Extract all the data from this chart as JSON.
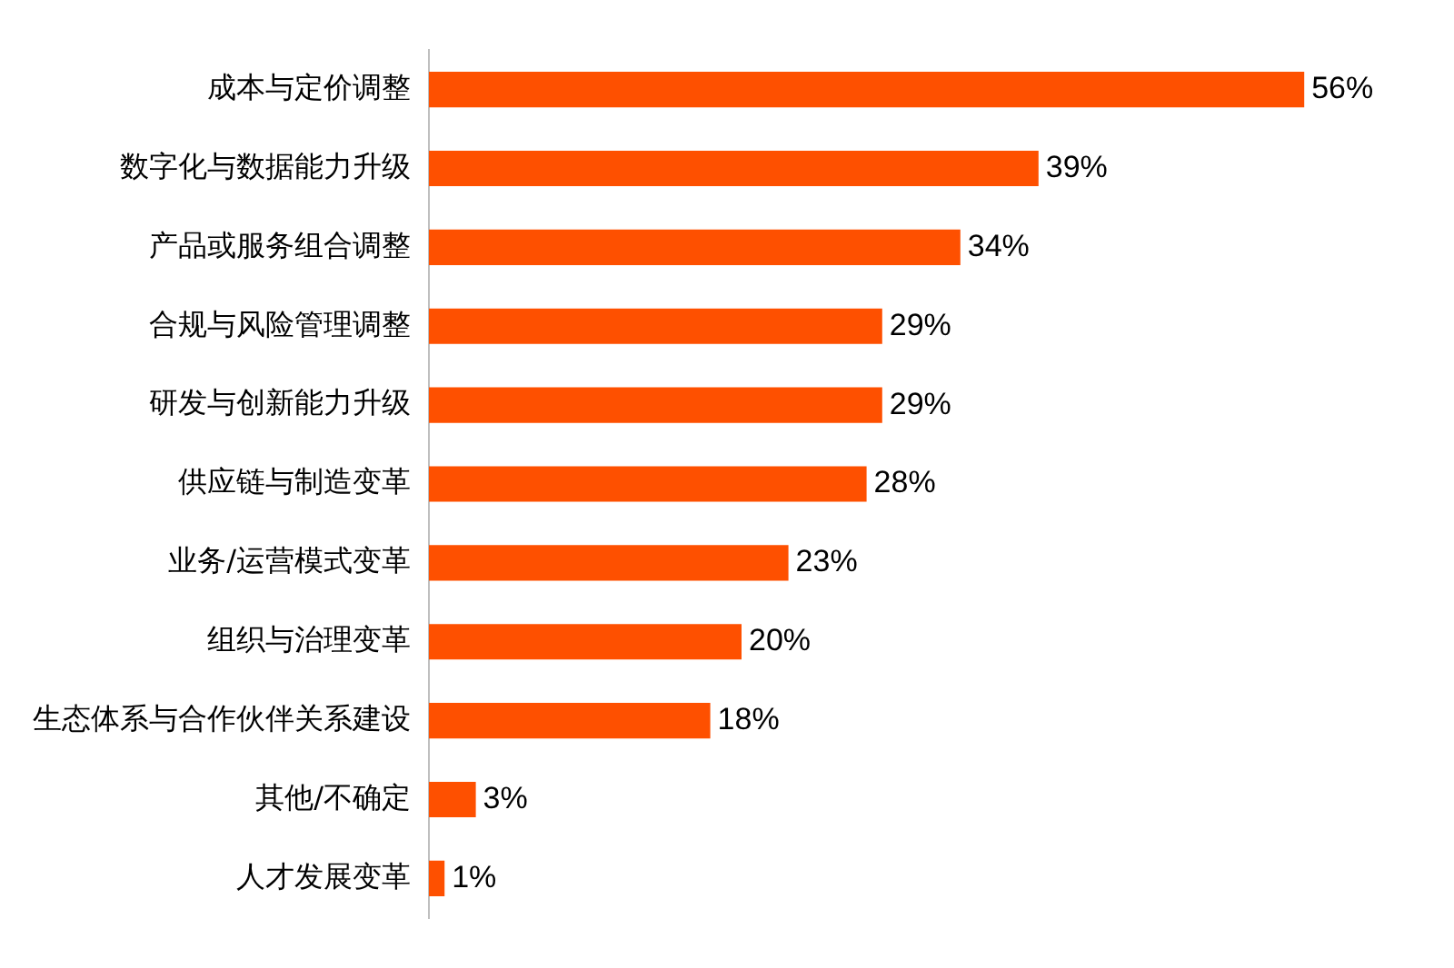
{
  "chart_data": {
    "type": "bar",
    "orientation": "horizontal",
    "categories": [
      "成本与定价调整",
      "数字化与数据能力升级",
      "产品或服务组合调整",
      "合规与风险管理调整",
      "研发与创新能力升级",
      "供应链与制造变革",
      "业务/运营模式变革",
      "组织与治理变革",
      "生态体系与合作伙伴关系建设",
      "其他/不确定",
      "人才发展变革"
    ],
    "values": [
      56,
      39,
      34,
      29,
      29,
      28,
      23,
      20,
      18,
      3,
      1
    ],
    "color": "#fe5000",
    "value_labels": [
      "56%",
      "39%",
      "34%",
      "29%",
      "29%",
      "28%",
      "23%",
      "20%",
      "18%",
      "3%",
      "1%"
    ]
  }
}
